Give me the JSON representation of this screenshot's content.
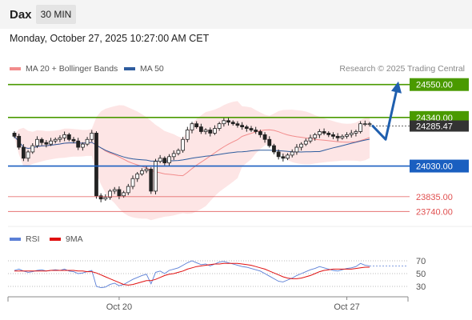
{
  "header": {
    "symbol": "Dax",
    "timeframe": "30 MIN",
    "datetime": "Monday, October 27, 2025 10:27:00 AM CET"
  },
  "legend": {
    "items": [
      {
        "label": "MA 20 + Bollinger Bands",
        "color": "#f28c8c"
      },
      {
        "label": "MA 50",
        "color": "#2e5c9e"
      }
    ],
    "research": "Research © 2025 Trading Central"
  },
  "chart_data": [
    {
      "type": "candlestick",
      "title": "Dax 30 MIN",
      "ylim": [
        23650,
        24620
      ],
      "x_ticks": [
        "Oct 20",
        "Oct 27"
      ],
      "current_price": {
        "value": 24285.47,
        "label": "24285.47",
        "color": "#333333"
      },
      "levels": [
        {
          "value": 24550.0,
          "label": "24550.00",
          "kind": "resistance",
          "color": "#4a9a00"
        },
        {
          "value": 24340.0,
          "label": "24340.00",
          "kind": "resistance",
          "color": "#4a9a00"
        },
        {
          "value": 24030.0,
          "label": "24030.00",
          "kind": "pivot",
          "color": "#1a5fc0"
        },
        {
          "value": 23835.0,
          "label": "23835.00",
          "kind": "support",
          "color": "#e05050"
        },
        {
          "value": 23740.0,
          "label": "23740.00",
          "kind": "support",
          "color": "#e05050"
        }
      ],
      "projection": [
        24285.47,
        24200,
        24550
      ],
      "series": [
        {
          "name": "Price",
          "type": "candlestick",
          "close": [
            24220,
            24150,
            24080,
            24120,
            24160,
            24200,
            24180,
            24170,
            24190,
            24200,
            24210,
            24230,
            24200,
            24190,
            24150,
            24170,
            24200,
            24240,
            23840,
            23820,
            23830,
            23870,
            23880,
            23840,
            23860,
            23900,
            23950,
            23980,
            24000,
            24010,
            23870,
            24060,
            24080,
            24050,
            24090,
            24110,
            24130,
            24200,
            24260,
            24300,
            24280,
            24250,
            24260,
            24240,
            24270,
            24300,
            24320,
            24310,
            24300,
            24290,
            24280,
            24270,
            24260,
            24250,
            24230,
            24200,
            24160,
            24120,
            24090,
            24080,
            24100,
            24120,
            24150,
            24170,
            24190,
            24210,
            24230,
            24250,
            24240,
            24230,
            24220,
            24210,
            24220,
            24230,
            24240,
            24250,
            24300,
            24300,
            24300
          ]
        },
        {
          "name": "MA 20",
          "type": "line",
          "color": "#f28c8c"
        },
        {
          "name": "MA 50",
          "type": "line",
          "color": "#2e5c9e"
        }
      ]
    },
    {
      "type": "line",
      "title": "RSI",
      "ylim": [
        20,
        80
      ],
      "y_ticks": [
        70,
        50,
        30
      ],
      "series": [
        {
          "name": "RSI",
          "color": "#5b7fd6",
          "values": [
            55,
            57,
            54,
            52,
            53,
            55,
            56,
            54,
            55,
            56,
            55,
            57,
            54,
            53,
            50,
            51,
            53,
            55,
            30,
            28,
            29,
            33,
            35,
            31,
            33,
            37,
            41,
            44,
            47,
            49,
            34,
            52,
            54,
            50,
            55,
            57,
            59,
            63,
            67,
            70,
            67,
            64,
            65,
            62,
            65,
            68,
            69,
            67,
            65,
            63,
            61,
            60,
            58,
            56,
            54,
            50,
            46,
            42,
            38,
            37,
            40,
            43,
            47,
            50,
            53,
            56,
            58,
            61,
            59,
            57,
            55,
            54,
            56,
            58,
            59,
            61,
            66,
            63,
            62
          ]
        },
        {
          "name": "9MA",
          "color": "#e01010",
          "values": [
            54,
            54,
            54,
            54,
            54,
            54,
            54,
            54,
            55,
            55,
            55,
            55,
            55,
            55,
            54,
            54,
            53,
            53,
            51,
            48,
            45,
            42,
            39,
            36,
            33,
            32,
            33,
            35,
            37,
            39,
            39,
            41,
            44,
            47,
            49,
            50,
            52,
            54,
            57,
            59,
            61,
            62,
            63,
            64,
            65,
            65,
            66,
            66,
            66,
            66,
            65,
            64,
            63,
            61,
            59,
            57,
            54,
            51,
            48,
            45,
            43,
            42,
            42,
            43,
            45,
            47,
            50,
            53,
            55,
            56,
            57,
            57,
            57,
            57,
            57,
            58,
            59,
            60,
            60
          ]
        }
      ]
    }
  ]
}
